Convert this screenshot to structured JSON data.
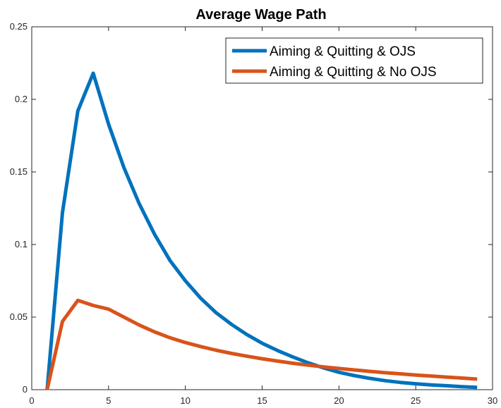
{
  "chart_data": {
    "type": "line",
    "title": "Average Wage Path",
    "xlabel": "",
    "ylabel": "",
    "xlim": [
      0,
      30
    ],
    "ylim": [
      0,
      0.25
    ],
    "xticks": [
      0,
      5,
      10,
      15,
      20,
      25,
      30
    ],
    "yticks": [
      0,
      0.05,
      0.1,
      0.15,
      0.2,
      0.25
    ],
    "xtick_labels": [
      "0",
      "5",
      "10",
      "15",
      "20",
      "25",
      "30"
    ],
    "ytick_labels": [
      "0",
      "0.05",
      "0.1",
      "0.15",
      "0.2",
      "0.25"
    ],
    "grid": false,
    "legend_position": "top-right",
    "series": [
      {
        "name": "Aiming & Quitting & OJS",
        "color": "#0072BD",
        "x": [
          1,
          2,
          3,
          4,
          5,
          6,
          7,
          8,
          9,
          10,
          11,
          12,
          13,
          14,
          15,
          16,
          17,
          18,
          19,
          20,
          21,
          22,
          23,
          24,
          25,
          26,
          27,
          28,
          29
        ],
        "values": [
          0,
          0.122,
          0.192,
          0.218,
          0.183,
          0.153,
          0.128,
          0.107,
          0.089,
          0.075,
          0.063,
          0.053,
          0.045,
          0.038,
          0.032,
          0.027,
          0.0225,
          0.0185,
          0.015,
          0.012,
          0.0097,
          0.0078,
          0.0062,
          0.005,
          0.0041,
          0.0033,
          0.0027,
          0.0021,
          0.0016
        ]
      },
      {
        "name": "Aiming & Quitting & No OJS",
        "color": "#D95319",
        "x": [
          1,
          2,
          3,
          4,
          5,
          6,
          7,
          8,
          9,
          10,
          11,
          12,
          13,
          14,
          15,
          16,
          17,
          18,
          19,
          20,
          21,
          22,
          23,
          24,
          25,
          26,
          27,
          28,
          29
        ],
        "values": [
          0,
          0.047,
          0.0615,
          0.058,
          0.0555,
          0.05,
          0.0445,
          0.0398,
          0.0358,
          0.0325,
          0.0297,
          0.0272,
          0.025,
          0.0231,
          0.0213,
          0.0197,
          0.0182,
          0.0169,
          0.0157,
          0.0146,
          0.0136,
          0.0126,
          0.0117,
          0.0109,
          0.0101,
          0.0094,
          0.0087,
          0.008,
          0.0073
        ]
      }
    ]
  }
}
